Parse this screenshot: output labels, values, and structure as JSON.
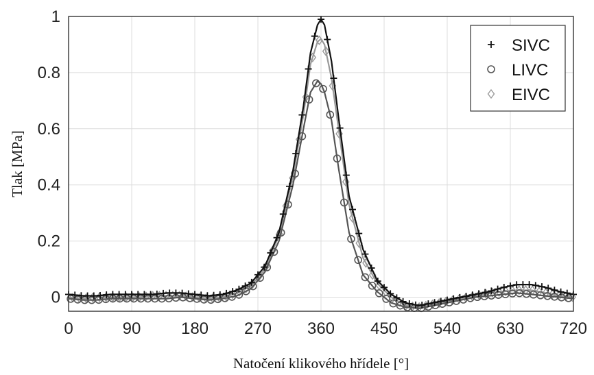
{
  "chart_data": {
    "type": "line",
    "title": "",
    "xlabel": "Natočení klikového hřídele [°]",
    "ylabel": "Tlak [MPa]",
    "xlim": [
      0,
      720
    ],
    "ylim": [
      -0.05,
      1.0
    ],
    "xticks": [
      0,
      90,
      180,
      270,
      360,
      450,
      540,
      630,
      720
    ],
    "yticks": [
      0,
      0.2,
      0.4,
      0.6,
      0.8,
      1
    ],
    "xtick_labels": [
      "0",
      "90",
      "180",
      "270",
      "360",
      "450",
      "540",
      "630",
      "720"
    ],
    "ytick_labels": [
      "0",
      "0.2",
      "0.4",
      "0.6",
      "0.8",
      "1"
    ],
    "grid": true,
    "legend_position": "top-right",
    "x": [
      0,
      20,
      40,
      60,
      80,
      100,
      120,
      140,
      160,
      180,
      200,
      220,
      240,
      260,
      280,
      300,
      320,
      335,
      345,
      355,
      360,
      365,
      375,
      385,
      400,
      420,
      440,
      460,
      480,
      500,
      520,
      540,
      560,
      580,
      600,
      620,
      640,
      660,
      680,
      700,
      720
    ],
    "series": [
      {
        "name": "SIVC",
        "marker": "plus",
        "color": "#111111",
        "values": [
          0.01,
          0.005,
          0.005,
          0.01,
          0.01,
          0.01,
          0.01,
          0.015,
          0.015,
          0.01,
          0.005,
          0.01,
          0.025,
          0.05,
          0.11,
          0.23,
          0.45,
          0.68,
          0.87,
          0.97,
          0.99,
          0.97,
          0.84,
          0.64,
          0.36,
          0.17,
          0.06,
          0.01,
          -0.02,
          -0.03,
          -0.02,
          -0.01,
          0.0,
          0.01,
          0.02,
          0.035,
          0.045,
          0.045,
          0.035,
          0.02,
          0.01
        ]
      },
      {
        "name": "LIVC",
        "marker": "circle",
        "color": "#555555",
        "values": [
          -0.005,
          -0.01,
          -0.01,
          -0.005,
          -0.005,
          -0.005,
          -0.005,
          -0.005,
          0.0,
          -0.005,
          -0.01,
          -0.005,
          0.005,
          0.03,
          0.09,
          0.2,
          0.4,
          0.6,
          0.73,
          0.77,
          0.76,
          0.73,
          0.63,
          0.46,
          0.23,
          0.08,
          0.02,
          -0.02,
          -0.035,
          -0.04,
          -0.03,
          -0.02,
          -0.01,
          0.0,
          0.005,
          0.01,
          0.015,
          0.01,
          0.005,
          0.0,
          -0.005
        ]
      },
      {
        "name": "EIVC",
        "marker": "diamond",
        "color": "#999999",
        "values": [
          0.0,
          -0.005,
          0.0,
          0.0,
          0.0,
          0.0,
          0.005,
          0.005,
          0.005,
          0.0,
          -0.005,
          0.0,
          0.015,
          0.04,
          0.1,
          0.22,
          0.43,
          0.65,
          0.83,
          0.91,
          0.92,
          0.9,
          0.78,
          0.6,
          0.33,
          0.14,
          0.05,
          0.0,
          -0.03,
          -0.035,
          -0.025,
          -0.015,
          -0.005,
          0.005,
          0.015,
          0.02,
          0.025,
          0.025,
          0.015,
          0.005,
          0.0
        ]
      }
    ]
  }
}
